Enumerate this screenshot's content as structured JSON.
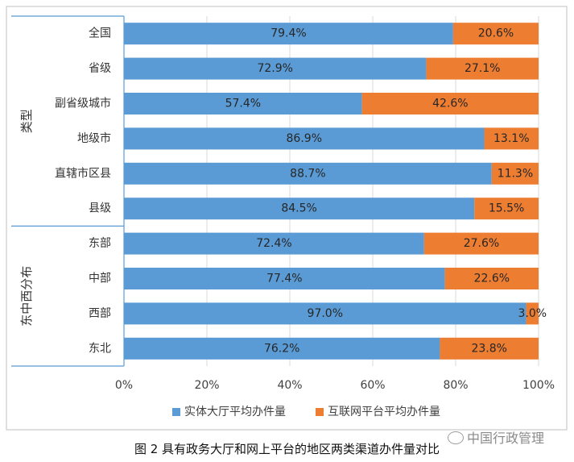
{
  "chart_data": {
    "type": "bar",
    "orientation": "horizontal",
    "stacked": true,
    "groups": [
      {
        "label": "类型",
        "categories": [
          "全国",
          "省级",
          "副省级城市",
          "地级市",
          "直辖市区县",
          "县级"
        ]
      },
      {
        "label": "东中西分布",
        "categories": [
          "东部",
          "中部",
          "西部",
          "东北"
        ]
      }
    ],
    "categories": [
      "全国",
      "省级",
      "副省级城市",
      "地级市",
      "直辖市区县",
      "县级",
      "东部",
      "中部",
      "西部",
      "东北"
    ],
    "series": [
      {
        "name": "实体大厅平均办件量",
        "color": "#5b9bd5",
        "values": [
          79.4,
          72.9,
          57.4,
          86.9,
          88.7,
          84.5,
          72.4,
          77.4,
          97.0,
          76.2
        ],
        "labels": [
          "79.4%",
          "72.9%",
          "57.4%",
          "86.9%",
          "88.7%",
          "84.5%",
          "72.4%",
          "77.4%",
          "97.0%",
          "76.2%"
        ]
      },
      {
        "name": "互联网平台平均办件量",
        "color": "#ed7d31",
        "values": [
          20.6,
          27.1,
          42.6,
          13.1,
          11.3,
          15.5,
          27.6,
          22.6,
          3.0,
          23.8
        ],
        "labels": [
          "20.6%",
          "27.1%",
          "42.6%",
          "13.1%",
          "11.3%",
          "15.5%",
          "27.6%",
          "22.6%",
          "3.0%",
          "23.8%"
        ]
      }
    ],
    "x_ticks": [
      "0%",
      "20%",
      "40%",
      "60%",
      "80%",
      "100%"
    ],
    "xlim": [
      0,
      100
    ],
    "legend_position": "bottom",
    "grid": "vertical"
  },
  "caption": "图 2  具有政务大厅和网上平台的地区两类渠道办件量对比",
  "watermark": "中国行政管理"
}
